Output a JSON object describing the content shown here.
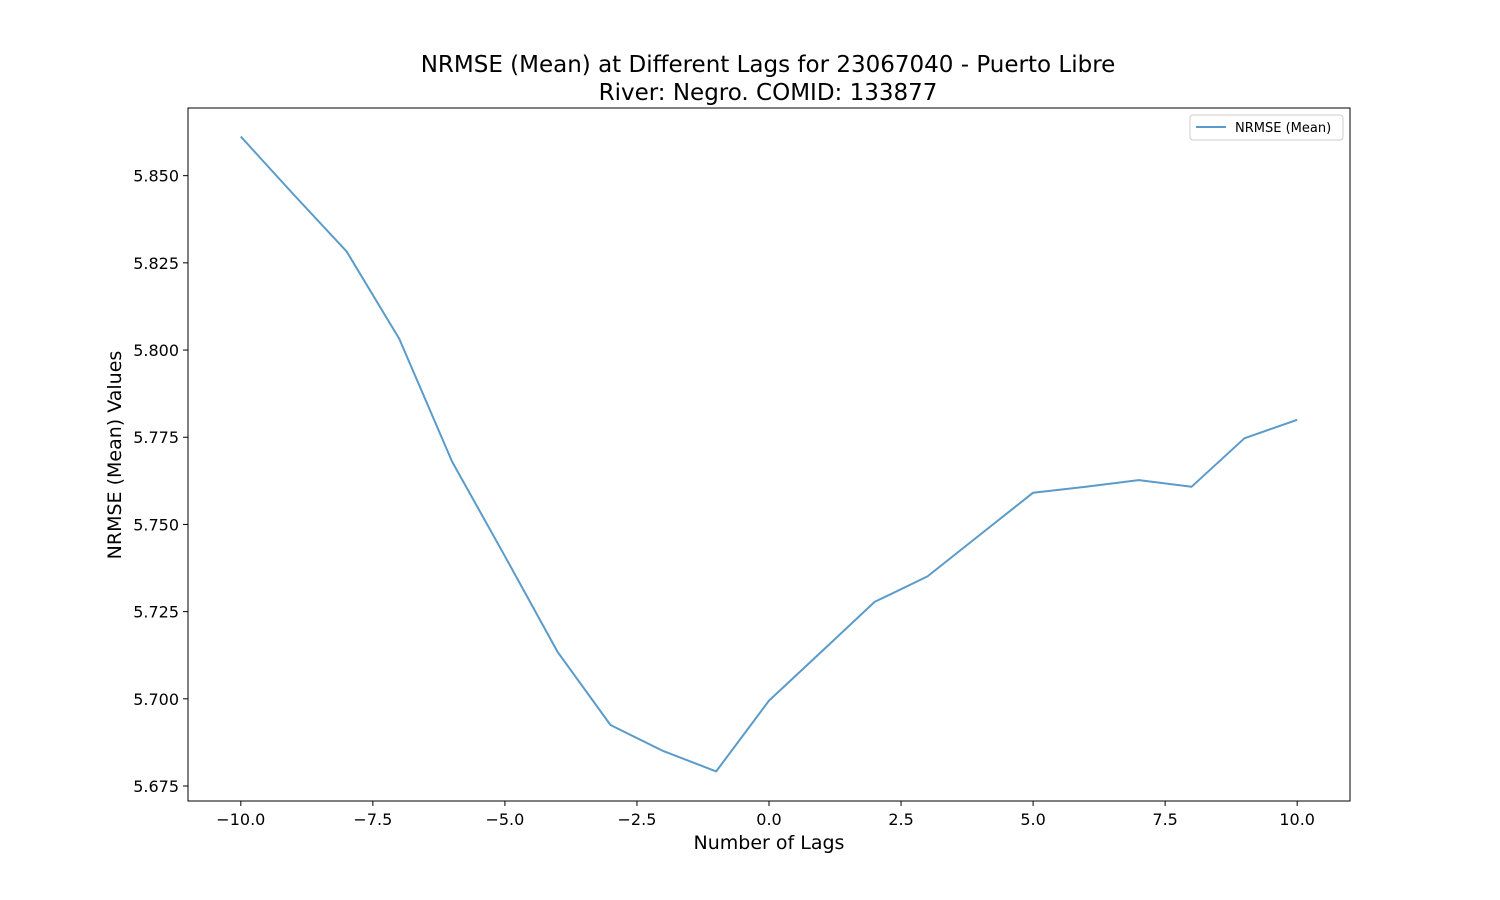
{
  "chart_data": {
    "type": "line",
    "title": "NRMSE (Mean) at Different Lags for 23067040 - Puerto Libre",
    "subtitle": "River: Negro. COMID: 133877",
    "xlabel": "Number of Lags",
    "ylabel": "NRMSE (Mean) Values",
    "xlim": [
      -11.0,
      11.0
    ],
    "ylim": [
      5.6707,
      5.8694
    ],
    "x_ticks": [
      -10.0,
      -7.5,
      -5.0,
      -2.5,
      0.0,
      2.5,
      5.0,
      7.5,
      10.0
    ],
    "x_tick_labels": [
      "−10.0",
      "−7.5",
      "−5.0",
      "−2.5",
      "0.0",
      "2.5",
      "5.0",
      "7.5",
      "10.0"
    ],
    "y_ticks": [
      5.675,
      5.7,
      5.725,
      5.75,
      5.775,
      5.8,
      5.825,
      5.85
    ],
    "y_tick_labels": [
      "5.675",
      "5.700",
      "5.725",
      "5.750",
      "5.775",
      "5.800",
      "5.825",
      "5.850"
    ],
    "grid": false,
    "legend": "top-right",
    "series": [
      {
        "name": "NRMSE (Mean)",
        "color": "#5b9bc9",
        "x": [
          -10,
          -9,
          -8,
          -7,
          -6,
          -5,
          -4,
          -3,
          -2,
          -1,
          0,
          1,
          2,
          3,
          4,
          5,
          6,
          7,
          8,
          9,
          10
        ],
        "y": [
          5.8612,
          5.8446,
          5.8283,
          5.8032,
          5.768,
          5.7409,
          5.7134,
          5.6925,
          5.685,
          5.6792,
          5.6995,
          5.7136,
          5.7278,
          5.7351,
          5.7471,
          5.7591,
          5.7608,
          5.7627,
          5.7608,
          5.7747,
          5.78
        ]
      }
    ]
  }
}
